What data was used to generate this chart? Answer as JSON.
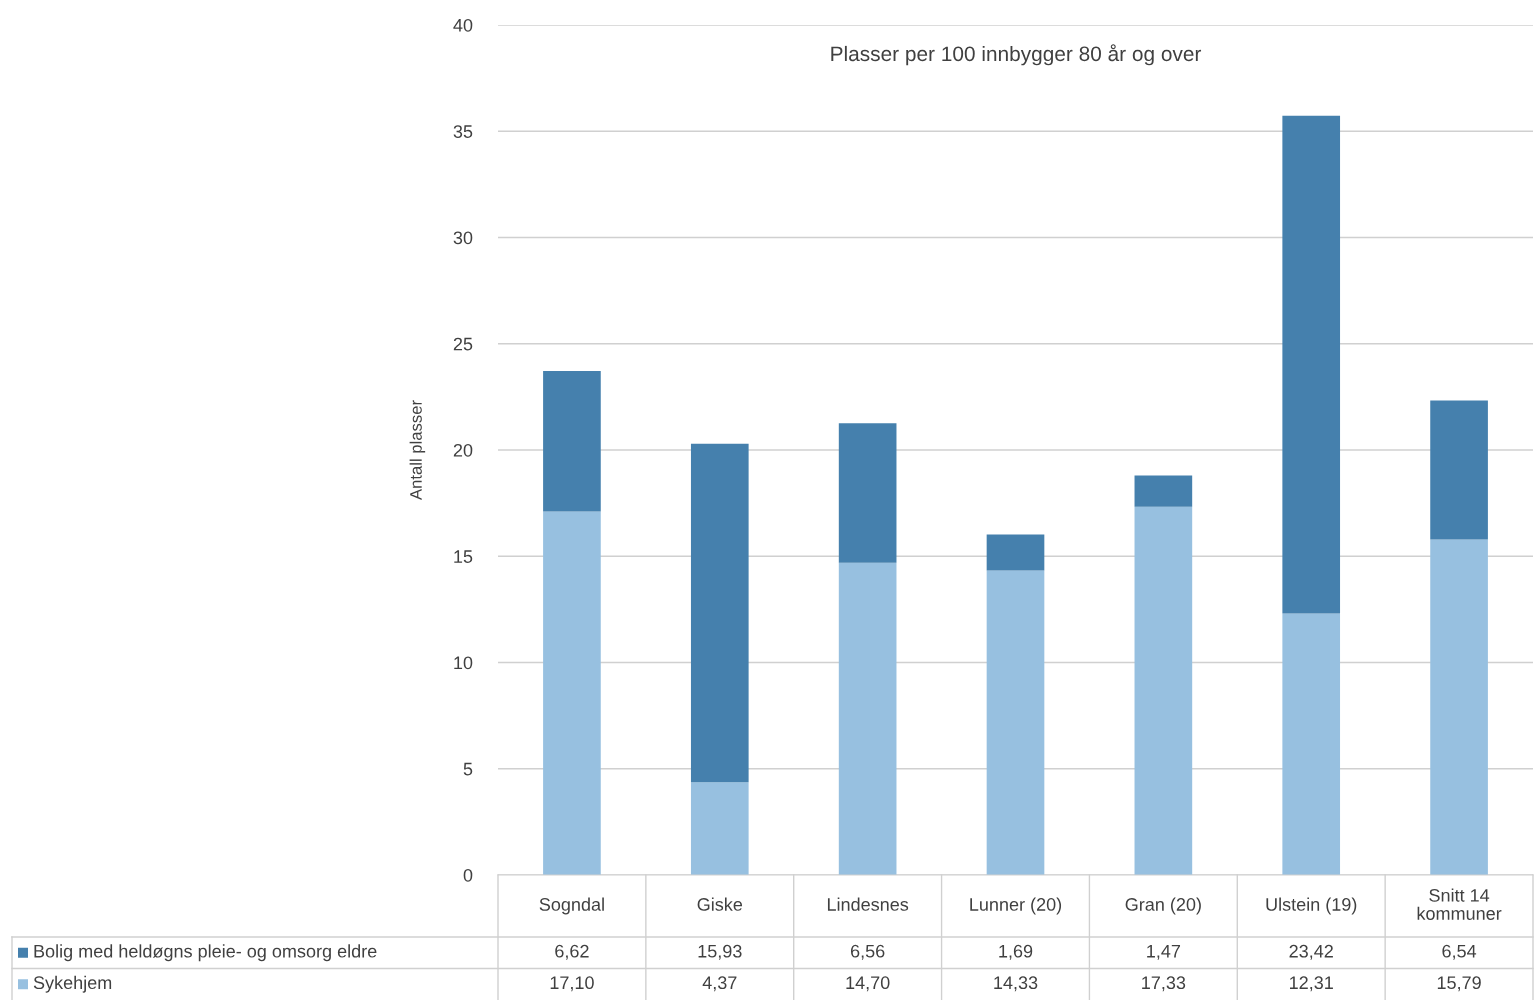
{
  "chart_data": {
    "type": "bar",
    "stacked": true,
    "title": "Plasser per 100 innbygger 80 år og over",
    "ylabel": "Antall plasser",
    "categories": [
      "Sogndal",
      "Giske",
      "Lindesnes",
      "Lunner (20)",
      "Gran (20)",
      "Ulstein (19)",
      "Snitt 14 kommuner"
    ],
    "series": [
      {
        "name": "Sykehjem",
        "color": "#97c0e0",
        "values": [
          17.1,
          4.37,
          14.7,
          14.33,
          17.33,
          12.31,
          15.79
        ],
        "value_labels": [
          "17,10",
          "4,37",
          "14,70",
          "14,33",
          "17,33",
          "12,31",
          "15,79"
        ]
      },
      {
        "name": "Bolig med heldøgns pleie- og omsorg eldre",
        "color": "#4580ad",
        "values": [
          6.62,
          15.93,
          6.56,
          1.69,
          1.47,
          23.42,
          6.54
        ],
        "value_labels": [
          "6,62",
          "15,93",
          "6,56",
          "1,69",
          "1,47",
          "23,42",
          "6,54"
        ]
      }
    ],
    "ylim": [
      0,
      40
    ],
    "yticks": [
      0,
      5,
      10,
      15,
      20,
      25,
      30,
      35,
      40
    ],
    "grid": "y",
    "legend": "bottom"
  }
}
